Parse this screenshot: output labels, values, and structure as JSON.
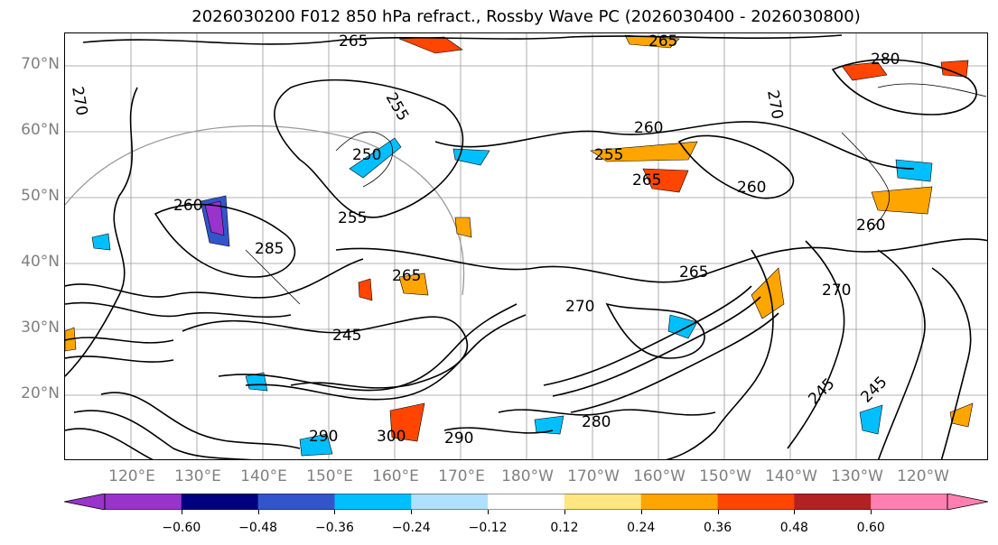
{
  "title": "2026030200 F012 850 hPa refract., Rossby Wave PC (2026030400 - 2026030800)",
  "lat_labels": [
    "70°N",
    "60°N",
    "50°N",
    "40°N",
    "30°N",
    "20°N"
  ],
  "lon_labels": [
    "120°E",
    "130°E",
    "140°E",
    "150°E",
    "160°E",
    "170°E",
    "180°W",
    "170°W",
    "160°W",
    "150°W",
    "140°W",
    "130°W",
    "120°W"
  ],
  "contour_labels": [
    "265",
    "265",
    "280",
    "270",
    "270",
    "255",
    "260",
    "250",
    "255",
    "260",
    "260",
    "265",
    "260",
    "255",
    "265",
    "265",
    "270",
    "270",
    "280",
    "290",
    "300",
    "245",
    "245",
    "245",
    "290",
    "285"
  ],
  "colorbar": {
    "ticks": [
      "−0.60",
      "−0.48",
      "−0.36",
      "−0.24",
      "−0.12",
      "0.12",
      "0.24",
      "0.36",
      "0.48",
      "0.60"
    ],
    "colors": [
      "#9933cc",
      "#000080",
      "#3355cc",
      "#00bfff",
      "#b0e0ff",
      "#ffffff",
      "#ffe680",
      "#ffa500",
      "#ff4500",
      "#b22222",
      "#ff80b0"
    ],
    "under_color": "#9933cc",
    "over_color": "#ff80b0"
  },
  "colors": {
    "grid": "#808080",
    "contour": "#000000",
    "coast": "#000000",
    "axis_label": "#808080"
  }
}
